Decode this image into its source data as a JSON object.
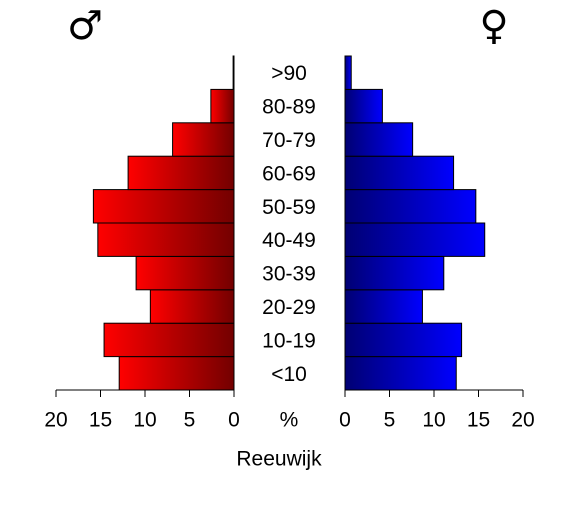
{
  "chart_data": {
    "type": "pyramid",
    "title": "Reeuwijk",
    "center_label": "%",
    "categories": [
      "<10",
      "10-19",
      "20-29",
      "30-39",
      "40-49",
      "50-59",
      "60-69",
      "70-79",
      "80-89",
      ">90"
    ],
    "series": [
      {
        "name": "♂",
        "color": "#ff0000",
        "values": [
          12.9,
          14.6,
          9.4,
          11.0,
          15.3,
          15.8,
          11.9,
          6.9,
          2.6,
          0.1
        ]
      },
      {
        "name": "♀",
        "color": "#0000ff",
        "values": [
          12.5,
          13.1,
          8.7,
          11.1,
          15.7,
          14.7,
          12.2,
          7.6,
          4.2,
          0.7
        ]
      }
    ],
    "xlim": [
      0,
      20
    ],
    "xticks": [
      0,
      5,
      10,
      15,
      20
    ]
  }
}
